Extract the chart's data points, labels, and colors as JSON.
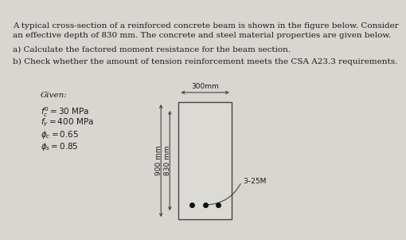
{
  "background_color": "#d8d6d0",
  "text_color": "#1a1a1a",
  "title_line1": "A typical cross-section of a reinforced concrete beam is shown in the figure below. Consider",
  "title_line2": "an effective depth of 830 mm. The concrete and steel material properties are given below.",
  "part_a": "a) Calculate the factored moment resistance for the beam section.",
  "part_b": "b) Check whether the amount of tension reinforcement meets the CSA A23.3 requirements.",
  "given_label": "Given:",
  "beam_width_label": "300mm",
  "dim_900": "900 mm",
  "dim_830": "830 mm",
  "rebar_label": "3–25M",
  "beam_facecolor": "#dcdad4",
  "beam_edgecolor": "#444444",
  "beam_lw": 1.0,
  "dot_color": "#111111",
  "arrow_color": "#444444"
}
